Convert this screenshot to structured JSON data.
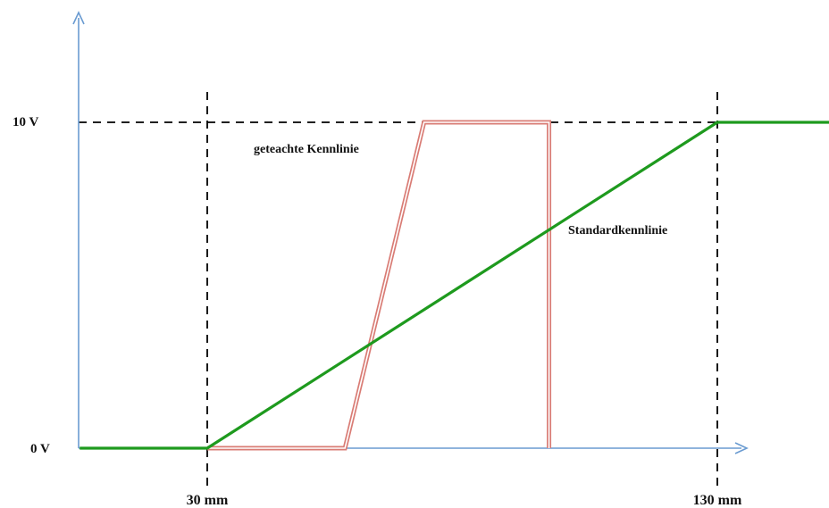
{
  "chart_data": {
    "type": "line",
    "xlabel": "",
    "ylabel": "",
    "x_ticks": [
      {
        "value": 30,
        "label": "30 mm"
      },
      {
        "value": 130,
        "label": "130 mm"
      }
    ],
    "y_ticks": [
      {
        "value": 0,
        "label": "0 V"
      },
      {
        "value": 10,
        "label": "10 V"
      }
    ],
    "series": [
      {
        "name": "Standardkennlinie",
        "color": "#1e9a1e",
        "points": [
          [
            5,
            0
          ],
          [
            30,
            0
          ],
          [
            130,
            10
          ],
          [
            152,
            10
          ]
        ]
      },
      {
        "name": "geteachte Kennlinie",
        "color": "#d97c75",
        "points": [
          [
            30,
            0
          ],
          [
            57,
            0
          ],
          [
            72.5,
            10
          ],
          [
            97,
            10
          ],
          [
            97,
            0
          ]
        ]
      }
    ],
    "annotations": [
      {
        "text": "geteachte Kennlinie",
        "series": "geteachte Kennlinie"
      },
      {
        "text": "Standardkennlinie",
        "series": "Standardkennlinie"
      }
    ],
    "axis_color": "#6a9bd1",
    "grid": false
  }
}
